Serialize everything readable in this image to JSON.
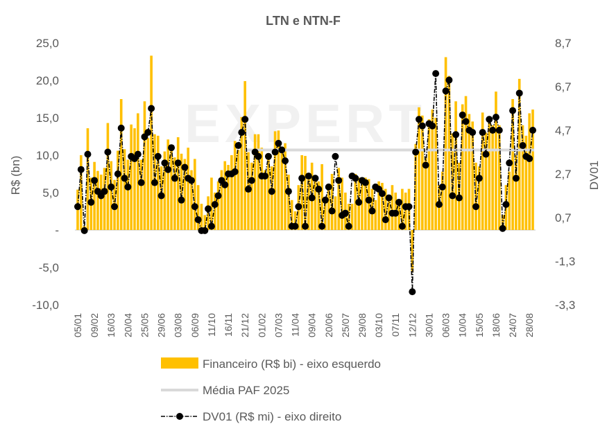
{
  "chart_data": {
    "type": "bar",
    "title": "LTN e NTN-F",
    "watermark": "EXPERT",
    "ylabel_left": "R$  (bn)",
    "ylabel_right": "DV01",
    "ylim_left": [
      -10,
      25
    ],
    "ylim_right": [
      -3.3,
      8.7
    ],
    "y_ticks_left": [
      "25,0",
      "20,0",
      "15,0",
      "10,0",
      "5,0",
      "-",
      "-5,0",
      "-10,0"
    ],
    "y_ticks_left_values": [
      25,
      20,
      15,
      10,
      5,
      0,
      -5,
      -10
    ],
    "y_ticks_right": [
      "8,7",
      "6,7",
      "4,7",
      "2,7",
      "0,7",
      "-1,3",
      "-3,3"
    ],
    "y_ticks_right_values": [
      8.7,
      6.7,
      4.7,
      2.7,
      0.7,
      -1.3,
      -3.3
    ],
    "x_tick_labels": [
      "05/01",
      "09/02",
      "16/03",
      "20/04",
      "25/05",
      "29/06",
      "03/08",
      "06/09",
      "11/10",
      "16/11",
      "21/12",
      "01/02",
      "07/03",
      "11/04",
      "09/04",
      "20/06",
      "25/07",
      "29/08",
      "03/10",
      "07/11",
      "12/12",
      "30/01",
      "06/03",
      "10/04",
      "15/05",
      "18/06",
      "24/07",
      "28/08"
    ],
    "x_tick_every": 5,
    "grid": false,
    "legend_position": "bottom",
    "colors": {
      "bars": "#FFC000",
      "mean_line": "#D9D9D9",
      "dv01": "#000000",
      "text": "#595959"
    },
    "series": [
      {
        "name": "Financeiro (R$ bi) - eixo esquerdo",
        "type": "bar",
        "axis": "left",
        "values": [
          5.4,
          10.0,
          0.5,
          13.6,
          7.0,
          9.1,
          7.9,
          7.4,
          8.3,
          14.3,
          9.2,
          6.7,
          10.6,
          17.5,
          10.8,
          9.4,
          14.1,
          13.6,
          15.6,
          9.4,
          17.2,
          12.3,
          23.3,
          12.8,
          12.6,
          8.5,
          10.5,
          12.1,
          11.3,
          9.7,
          12.4,
          10.2,
          9.5,
          11.0,
          8.0,
          9.5,
          6.0,
          3.5,
          2.0,
          4.5,
          7.0,
          5.0,
          6.5,
          8.0,
          9.2,
          8.7,
          10.0,
          11.9,
          10.7,
          15.1,
          19.9,
          10.4,
          9.0,
          12.8,
          12.8,
          11.0,
          8.0,
          9.5,
          8.5,
          13.2,
          13.3,
          10.5,
          11.6,
          7.4,
          4.0,
          2.5,
          6.0,
          10.0,
          9.9,
          7.0,
          9.0,
          7.3,
          6.5,
          8.8,
          4.0,
          6.0,
          7.5,
          4.5,
          8.3,
          7.0,
          5.0,
          3.5,
          3.5,
          7.5,
          7.0,
          6.5,
          7.0,
          6.8,
          5.5,
          4.0,
          6.5,
          6.3,
          5.5,
          4.5,
          6.0,
          5.0,
          4.0,
          5.5,
          5.0,
          5.5,
          -5.6,
          11.5,
          16.4,
          15.3,
          9.7,
          14.8,
          16.1,
          15.0,
          6.0,
          7.8,
          23.1,
          20.6,
          12.9,
          17.2,
          9.0,
          16.8,
          17.9,
          15.5,
          14.5,
          9.0,
          8.5,
          15.7,
          13.0,
          15.0,
          14.0,
          18.5,
          14.0,
          2.0,
          6.0,
          7.8,
          17.5,
          10.0,
          20.2,
          14.0,
          12.6,
          15.6,
          16.1
        ]
      },
      {
        "name": "Média PAF 2025",
        "type": "line",
        "axis": "left",
        "value": 10.7,
        "start_index": 50
      },
      {
        "name": "DV01 (R$ mi) - eixo direito",
        "type": "line",
        "axis": "right",
        "values": [
          1.2,
          2.9,
          0.1,
          3.6,
          1.4,
          2.4,
          1.9,
          1.7,
          1.9,
          3.7,
          2.1,
          1.2,
          2.7,
          4.8,
          2.5,
          2.1,
          3.5,
          3.4,
          3.6,
          2.3,
          4.4,
          4.6,
          5.7,
          2.3,
          3.5,
          1.7,
          3.2,
          2.9,
          3.9,
          2.5,
          3.2,
          1.5,
          3.0,
          2.5,
          2.4,
          1.2,
          0.6,
          0.1,
          0.1,
          1.1,
          0.3,
          1.3,
          1.7,
          2.4,
          2.2,
          2.7,
          2.7,
          2.8,
          4.0,
          4.6,
          5.2,
          2.0,
          2.4,
          3.7,
          3.5,
          2.6,
          2.6,
          3.5,
          1.9,
          3.7,
          4.1,
          3.8,
          3.3,
          1.9,
          0.3,
          0.3,
          1.2,
          2.5,
          0.3,
          2.6,
          1.6,
          2.5,
          2.0,
          0.3,
          1.5,
          2.1,
          1.0,
          3.5,
          2.4,
          0.8,
          0.9,
          0.3,
          2.6,
          2.5,
          1.4,
          2.4,
          2.3,
          1.5,
          1.0,
          2.1,
          2.0,
          1.8,
          0.6,
          1.6,
          0.9,
          0.9,
          1.4,
          0.3,
          1.2,
          1.2,
          -2.7,
          3.7,
          5.2,
          4.9,
          3.1,
          5.0,
          4.9,
          7.3,
          1.3,
          2.1,
          6.5,
          7.0,
          1.7,
          4.5,
          1.6,
          5.4,
          5.1,
          4.7,
          4.6,
          1.2,
          2.5,
          4.6,
          3.6,
          5.2,
          4.7,
          5.3,
          4.7,
          0.2,
          1.3,
          3.2,
          5.6,
          2.5,
          6.4,
          4.0,
          3.5,
          3.4,
          4.7
        ]
      }
    ]
  }
}
